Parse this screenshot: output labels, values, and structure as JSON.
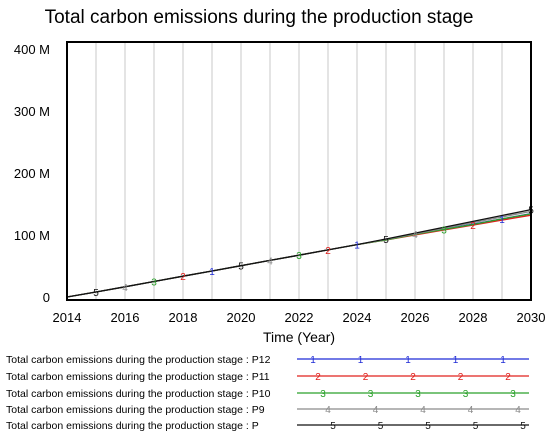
{
  "chart_data": {
    "type": "line",
    "title": "Total carbon emissions during the production stage",
    "xlabel": "Time (Year)",
    "ylabel": "",
    "xlim": [
      2014,
      2030
    ],
    "ylim": [
      0,
      400000000
    ],
    "x_ticks": [
      "2014",
      "2016",
      "2018",
      "2020",
      "2022",
      "2024",
      "2026",
      "2028",
      "2030"
    ],
    "y_ticks": [
      "0",
      "100 M",
      "200 M",
      "300 M",
      "400 M"
    ],
    "grid": "vertical",
    "legend_position": "bottom",
    "series": [
      {
        "name": "Total carbon emissions during the production stage : P12",
        "marker": "1",
        "color": "#1f2bd6",
        "x": [
          2014,
          2015,
          2016,
          2017,
          2018,
          2019,
          2020,
          2021,
          2022,
          2023,
          2024,
          2025,
          2026,
          2027,
          2028,
          2029,
          2030
        ],
        "y": [
          0,
          8000000,
          16500000,
          25000000,
          33500000,
          42000000,
          50500000,
          59000000,
          67500000,
          76000000,
          84500000,
          92500000,
          101000000,
          109500000,
          117500000,
          126000000,
          134500000
        ]
      },
      {
        "name": "Total carbon emissions during the production stage : P11",
        "marker": "2",
        "color": "#e0201c",
        "x": [
          2014,
          2015,
          2016,
          2017,
          2018,
          2019,
          2020,
          2021,
          2022,
          2023,
          2024,
          2025,
          2026,
          2027,
          2028,
          2029,
          2030
        ],
        "y": [
          0,
          8000000,
          16500000,
          25000000,
          33500000,
          42000000,
          50500000,
          59000000,
          67500000,
          76000000,
          84500000,
          92000000,
          100000000,
          108000000,
          116000000,
          124000000,
          132000000
        ]
      },
      {
        "name": "Total carbon emissions during the production stage : P10",
        "marker": "3",
        "color": "#2aa02a",
        "x": [
          2014,
          2015,
          2016,
          2017,
          2018,
          2019,
          2020,
          2021,
          2022,
          2023,
          2024,
          2025,
          2026,
          2027,
          2028,
          2029,
          2030
        ],
        "y": [
          0,
          8000000,
          16500000,
          25000000,
          33500000,
          42000000,
          50500000,
          59000000,
          67500000,
          76000000,
          84500000,
          92000000,
          101000000,
          109000000,
          117000000,
          126000000,
          134000000
        ]
      },
      {
        "name": "Total carbon emissions during the production stage : P9",
        "marker": "4",
        "color": "#8a8a8a",
        "x": [
          2014,
          2015,
          2016,
          2017,
          2018,
          2019,
          2020,
          2021,
          2022,
          2023,
          2024,
          2025,
          2026,
          2027,
          2028,
          2029,
          2030
        ],
        "y": [
          0,
          8000000,
          16500000,
          25000000,
          33500000,
          42000000,
          50500000,
          59000000,
          67500000,
          76000000,
          84500000,
          93000000,
          102000000,
          111000000,
          120000000,
          129000000,
          138000000
        ]
      },
      {
        "name": "Total carbon emissions during the production stage : P",
        "marker": "5",
        "color": "#111111",
        "x": [
          2014,
          2015,
          2016,
          2017,
          2018,
          2019,
          2020,
          2021,
          2022,
          2023,
          2024,
          2025,
          2026,
          2027,
          2028,
          2029,
          2030
        ],
        "y": [
          0,
          8000000,
          16500000,
          25000000,
          33500000,
          42000000,
          50500000,
          59000000,
          67500000,
          76000000,
          84500000,
          93500000,
          103000000,
          112500000,
          122000000,
          131500000,
          141000000
        ]
      }
    ]
  }
}
